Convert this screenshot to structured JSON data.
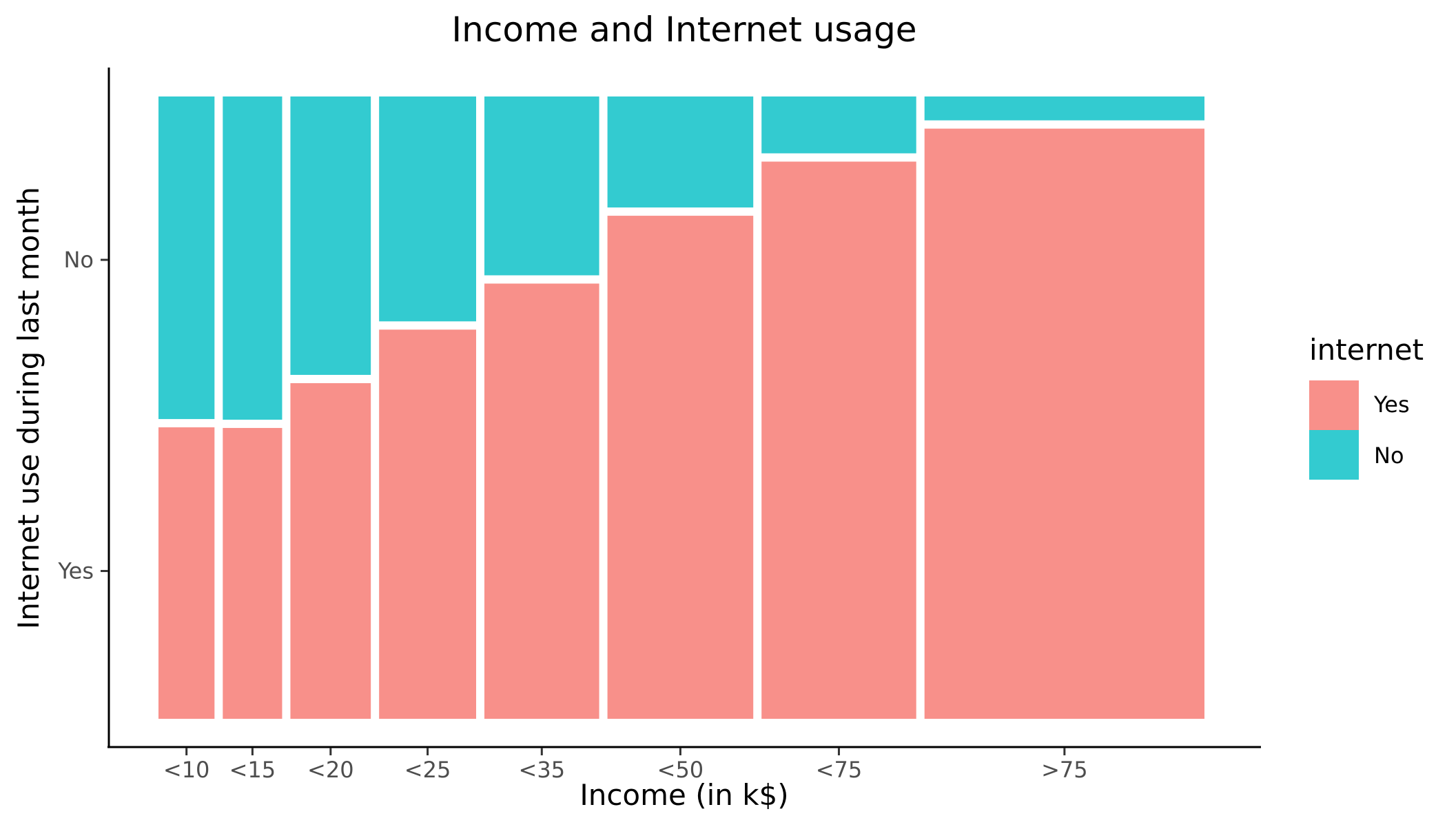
{
  "chart_data": {
    "type": "mosaic",
    "title": "Income and Internet usage",
    "xlabel": "Income (in k$)",
    "ylabel": "Internet use during last month",
    "categories": [
      "<10",
      "<15",
      "<20",
      "<25",
      "<35",
      "<50",
      "<75",
      ">75"
    ],
    "column_widths": [
      0.058,
      0.061,
      0.08,
      0.095,
      0.111,
      0.139,
      0.147,
      0.26
    ],
    "series": [
      {
        "name": "Yes",
        "values": [
          0.475,
          0.474,
          0.546,
          0.632,
          0.706,
          0.815,
          0.902,
          0.955
        ]
      },
      {
        "name": "No",
        "values": [
          0.525,
          0.526,
          0.454,
          0.368,
          0.294,
          0.185,
          0.098,
          0.045
        ]
      }
    ],
    "y_ticks": [
      "Yes",
      "No"
    ],
    "legend": {
      "title": "internet",
      "placement": "right"
    },
    "colors": {
      "Yes": "#f8908a",
      "No": "#33cbd0"
    },
    "grid": false
  }
}
